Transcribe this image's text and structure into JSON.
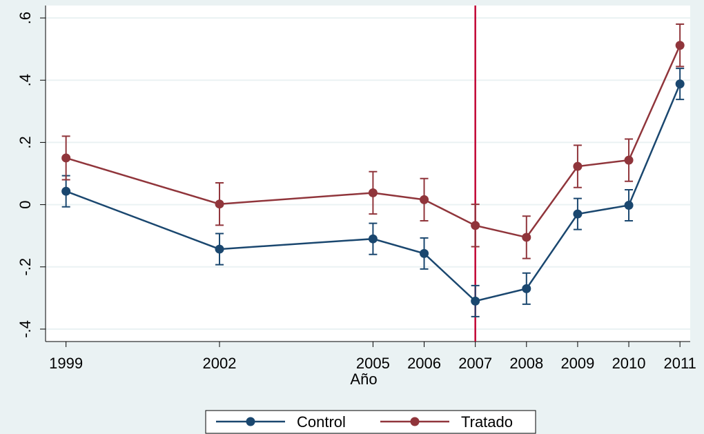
{
  "chart_data": {
    "type": "line",
    "x": [
      1999,
      2002,
      2005,
      2006,
      2007,
      2008,
      2009,
      2010,
      2011
    ],
    "xlim": [
      1998.6,
      2011.2
    ],
    "xticks": [
      1999,
      2002,
      2005,
      2006,
      2007,
      2008,
      2009,
      2010,
      2011
    ],
    "xlabel": "Año",
    "ylim": [
      -0.44,
      0.64
    ],
    "yticks": [
      {
        "value": -0.4,
        "label": "-.4"
      },
      {
        "value": -0.2,
        "label": "-.2"
      },
      {
        "value": 0,
        "label": "0"
      },
      {
        "value": 0.2,
        "label": ".2"
      },
      {
        "value": 0.4,
        "label": ".4"
      },
      {
        "value": 0.6,
        "label": ".6"
      }
    ],
    "grid": true,
    "xline": 2007,
    "xline_color": "#c10534",
    "legend": "bottom",
    "series": [
      {
        "name": "Control",
        "color": "#1a476f",
        "values": [
          0.043,
          -0.143,
          -0.11,
          -0.157,
          -0.31,
          -0.27,
          -0.03,
          -0.002,
          0.388
        ],
        "errors": [
          0.05,
          0.05,
          0.05,
          0.05,
          0.05,
          0.05,
          0.05,
          0.05,
          0.05
        ]
      },
      {
        "name": "Tratado",
        "color": "#90353b",
        "values": [
          0.15,
          0.002,
          0.038,
          0.016,
          -0.067,
          -0.105,
          0.123,
          0.143,
          0.512
        ],
        "errors": [
          0.07,
          0.068,
          0.068,
          0.068,
          0.068,
          0.068,
          0.068,
          0.068,
          0.068
        ]
      }
    ]
  }
}
